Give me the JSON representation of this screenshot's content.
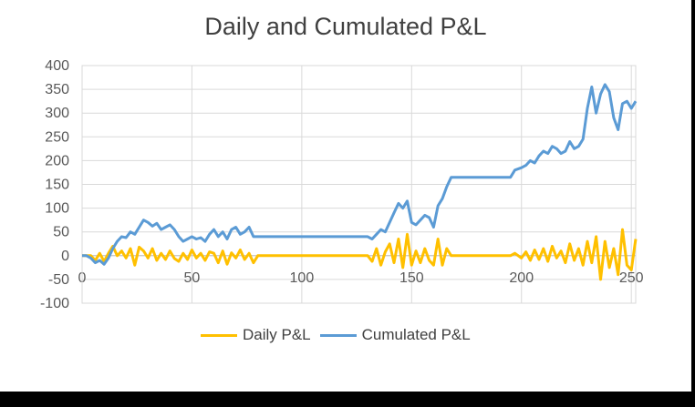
{
  "chart_data": {
    "type": "line",
    "title": "Daily and Cumulated P&L",
    "xlabel": "",
    "ylabel": "",
    "xlim": [
      0,
      252
    ],
    "ylim": [
      -100,
      400
    ],
    "x_ticks": [
      0,
      50,
      100,
      150,
      200,
      250
    ],
    "y_ticks": [
      -100,
      -50,
      0,
      50,
      100,
      150,
      200,
      250,
      300,
      350,
      400
    ],
    "grid": true,
    "legend_position": "bottom",
    "series": [
      {
        "name": "Daily P&L",
        "color": "#FFC000",
        "x": [
          0,
          2,
          4,
          6,
          8,
          10,
          12,
          14,
          16,
          18,
          20,
          22,
          24,
          26,
          28,
          30,
          32,
          34,
          36,
          38,
          40,
          42,
          44,
          46,
          48,
          50,
          52,
          54,
          56,
          58,
          60,
          62,
          64,
          66,
          68,
          70,
          72,
          74,
          76,
          78,
          80,
          90,
          100,
          110,
          120,
          130,
          132,
          134,
          136,
          138,
          140,
          142,
          144,
          146,
          148,
          150,
          152,
          154,
          156,
          158,
          160,
          162,
          164,
          166,
          168,
          170,
          180,
          190,
          195,
          197,
          200,
          202,
          204,
          206,
          208,
          210,
          212,
          214,
          216,
          218,
          220,
          222,
          224,
          226,
          228,
          230,
          232,
          234,
          236,
          238,
          240,
          242,
          244,
          246,
          248,
          250,
          252
        ],
        "y": [
          0,
          0,
          0,
          -10,
          5,
          -12,
          5,
          20,
          0,
          10,
          -5,
          15,
          -20,
          18,
          10,
          -5,
          15,
          -10,
          5,
          -8,
          10,
          -6,
          -12,
          5,
          -8,
          12,
          -5,
          5,
          -10,
          8,
          5,
          -15,
          10,
          -18,
          6,
          -5,
          12,
          -8,
          5,
          -15,
          0,
          0,
          0,
          0,
          0,
          0,
          -12,
          15,
          -20,
          8,
          25,
          -15,
          35,
          -25,
          45,
          -20,
          10,
          -15,
          15,
          -10,
          -20,
          35,
          -20,
          15,
          0,
          0,
          0,
          0,
          0,
          5,
          -5,
          8,
          -10,
          12,
          -8,
          15,
          -12,
          20,
          -5,
          10,
          -15,
          25,
          -10,
          15,
          -20,
          30,
          -15,
          40,
          -50,
          30,
          -25,
          15,
          -40,
          55,
          -20,
          -30,
          35
        ]
      },
      {
        "name": "Cumulated P&L",
        "color": "#5B9BD5",
        "x": [
          0,
          2,
          4,
          6,
          8,
          10,
          12,
          14,
          16,
          18,
          20,
          22,
          24,
          26,
          28,
          30,
          32,
          34,
          36,
          38,
          40,
          42,
          44,
          46,
          48,
          50,
          52,
          54,
          56,
          58,
          60,
          62,
          64,
          66,
          68,
          70,
          72,
          74,
          76,
          78,
          80,
          90,
          100,
          110,
          120,
          130,
          132,
          134,
          136,
          138,
          140,
          142,
          144,
          146,
          148,
          150,
          152,
          154,
          156,
          158,
          160,
          162,
          164,
          166,
          168,
          170,
          180,
          190,
          195,
          197,
          200,
          202,
          204,
          206,
          208,
          210,
          212,
          214,
          216,
          218,
          220,
          222,
          224,
          226,
          228,
          230,
          232,
          234,
          236,
          238,
          240,
          242,
          244,
          246,
          248,
          250,
          252
        ],
        "y": [
          0,
          0,
          -5,
          -15,
          -10,
          -18,
          -5,
          15,
          30,
          40,
          38,
          50,
          45,
          60,
          75,
          70,
          62,
          68,
          55,
          60,
          65,
          55,
          40,
          30,
          35,
          40,
          35,
          38,
          30,
          45,
          55,
          40,
          50,
          35,
          55,
          60,
          45,
          50,
          60,
          40,
          40,
          40,
          40,
          40,
          40,
          40,
          35,
          45,
          55,
          50,
          70,
          90,
          110,
          100,
          115,
          70,
          65,
          75,
          85,
          80,
          60,
          105,
          120,
          145,
          165,
          165,
          165,
          165,
          165,
          180,
          185,
          190,
          200,
          195,
          210,
          220,
          215,
          230,
          225,
          215,
          220,
          240,
          225,
          230,
          245,
          310,
          355,
          300,
          340,
          360,
          345,
          290,
          265,
          320,
          325,
          310,
          325
        ]
      }
    ]
  }
}
